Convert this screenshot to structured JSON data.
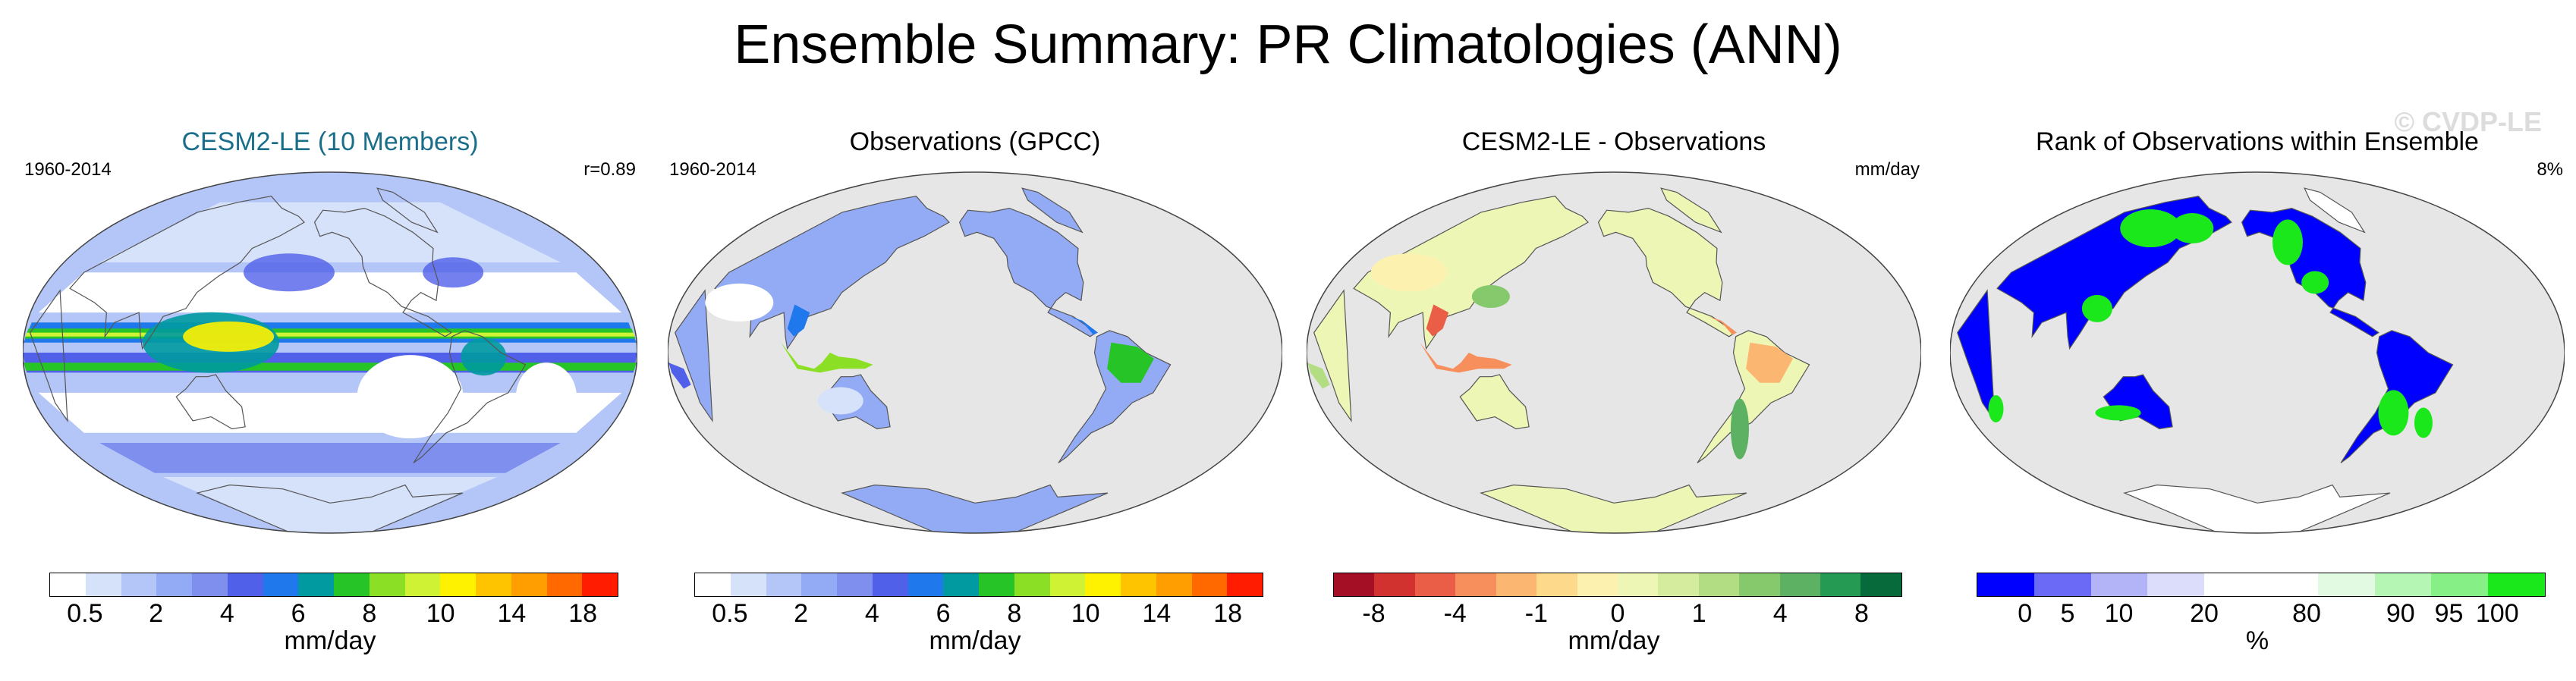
{
  "title": "Ensemble Summary: PR Climatologies (ANN)",
  "watermark": "© CVDP-LE",
  "colors": {
    "land_gray": "#e6e6e6",
    "title_teal": "#1a6e8a",
    "coast": "#555555"
  },
  "panels": [
    {
      "title": "CESM2-LE (10 Members)",
      "left_label": "1960-2014",
      "right_label": "r=0.89",
      "unit": "mm/day",
      "map_style": "ensemble",
      "colorbar": [
        "#ffffff",
        "#d6e1fa",
        "#b4c6f7",
        "#93abf4",
        "#7f8fee",
        "#5060e8",
        "#1f78ec",
        "#009aa0",
        "#27c427",
        "#8be026",
        "#cff235",
        "#fff200",
        "#ffc400",
        "#ff9e00",
        "#ff6900",
        "#ff1c00"
      ],
      "ticks": [
        {
          "label": "0.5",
          "pos": 0.0625
        },
        {
          "label": "2",
          "pos": 0.1875
        },
        {
          "label": "4",
          "pos": 0.3125
        },
        {
          "label": "6",
          "pos": 0.4375
        },
        {
          "label": "8",
          "pos": 0.5625
        },
        {
          "label": "10",
          "pos": 0.6875
        },
        {
          "label": "14",
          "pos": 0.8125
        },
        {
          "label": "18",
          "pos": 0.9375
        }
      ]
    },
    {
      "title": "Observations (GPCC)",
      "left_label": "1960-2014",
      "right_label": "",
      "unit": "mm/day",
      "map_style": "obs",
      "colorbar": [
        "#ffffff",
        "#d6e1fa",
        "#b4c6f7",
        "#93abf4",
        "#7f8fee",
        "#5060e8",
        "#1f78ec",
        "#009aa0",
        "#27c427",
        "#8be026",
        "#cff235",
        "#fff200",
        "#ffc400",
        "#ff9e00",
        "#ff6900",
        "#ff1c00"
      ],
      "ticks": [
        {
          "label": "0.5",
          "pos": 0.0625
        },
        {
          "label": "2",
          "pos": 0.1875
        },
        {
          "label": "4",
          "pos": 0.3125
        },
        {
          "label": "6",
          "pos": 0.4375
        },
        {
          "label": "8",
          "pos": 0.5625
        },
        {
          "label": "10",
          "pos": 0.6875
        },
        {
          "label": "14",
          "pos": 0.8125
        },
        {
          "label": "18",
          "pos": 0.9375
        }
      ]
    },
    {
      "title": "CESM2-LE - Observations",
      "left_label": "",
      "right_label": "mm/day",
      "unit": "mm/day",
      "map_style": "diff",
      "colorbar": [
        "#a50f26",
        "#d1312f",
        "#ea5d46",
        "#f68f5c",
        "#fbb772",
        "#fcd98b",
        "#fdf1b0",
        "#eef6b5",
        "#d5ec9e",
        "#b2dd82",
        "#86c96d",
        "#5cb163",
        "#259a52",
        "#066a3a"
      ],
      "ticks": [
        {
          "label": "-8",
          "pos": 0.0714
        },
        {
          "label": "-4",
          "pos": 0.2143
        },
        {
          "label": "-1",
          "pos": 0.3571
        },
        {
          "label": "0",
          "pos": 0.5
        },
        {
          "label": "1",
          "pos": 0.6429
        },
        {
          "label": "4",
          "pos": 0.7857
        },
        {
          "label": "8",
          "pos": 0.9286
        }
      ]
    },
    {
      "title": "Rank of Observations within Ensemble",
      "left_label": "",
      "right_label": "8%",
      "unit": "%",
      "map_style": "rank",
      "colorbar": [
        "#0000ff",
        "#6a6af6",
        "#b3b3f7",
        "#dcdcfb",
        "#ffffff",
        "#ffffff",
        "#e1fae1",
        "#b5f6b5",
        "#86f086",
        "#1be81b"
      ],
      "ticks": [
        {
          "label": "0",
          "pos": 0.085
        },
        {
          "label": "5",
          "pos": 0.16
        },
        {
          "label": "10",
          "pos": 0.25
        },
        {
          "label": "20",
          "pos": 0.4
        },
        {
          "label": "80",
          "pos": 0.58
        },
        {
          "label": "90",
          "pos": 0.745
        },
        {
          "label": "95",
          "pos": 0.83
        },
        {
          "label": "100",
          "pos": 0.915
        }
      ]
    }
  ]
}
